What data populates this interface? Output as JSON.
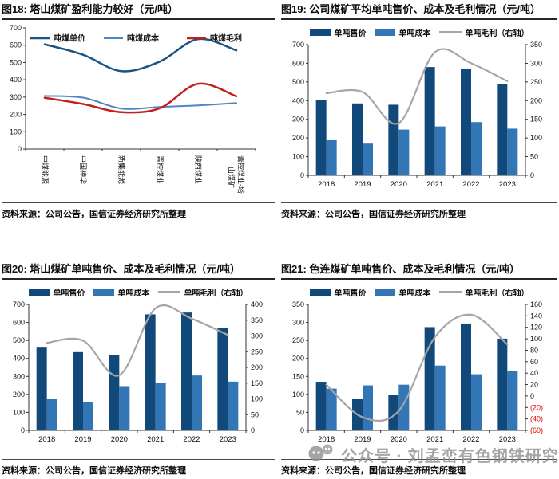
{
  "page": {
    "background": "#ffffff"
  },
  "source_label": "资料来源：公司公告，国信证券经济研究所整理",
  "watermark": {
    "text": "公众号 · 刘孟峦有色钢铁研究",
    "icon": "wechat-official-account-icon",
    "color": "#8d8d8d"
  },
  "colors": {
    "price_dark_blue": "#12497B",
    "cost_light_blue": "#3376B5",
    "margin_gray": "#A6A6A6",
    "margin_red": "#C42020",
    "negative_label_red": "#E60000",
    "axis": "#333333",
    "title_rule": "#23262e"
  },
  "chart_data": [
    {
      "id": "fig18",
      "type": "line",
      "title": "图18: 塔山煤矿盈利能力较好（元/吨）",
      "source": "资料来源：公司公告，国信证券经济研究所整理",
      "categories": [
        "中煤能源",
        "中国神华",
        "新集能源",
        "晋控煤业",
        "陕西煤业",
        "晋控煤业-塔山煤矿"
      ],
      "series": [
        {
          "name": "吨煤单价",
          "color": "#1A5480",
          "width": 2.5,
          "values": [
            605,
            545,
            450,
            505,
            635,
            570
          ]
        },
        {
          "name": "吨煤成本",
          "color": "#4C86C3",
          "width": 2,
          "values": [
            307,
            297,
            234,
            243,
            252,
            266
          ]
        },
        {
          "name": "吨煤毛利",
          "color": "#C42020",
          "width": 2.5,
          "values": [
            296,
            260,
            213,
            236,
            377,
            305
          ]
        }
      ],
      "y": {
        "min": 0,
        "max": 700,
        "step": 100
      },
      "xlabel_rotation": 90,
      "grid": false,
      "legend_position": "inside-top"
    },
    {
      "id": "fig19",
      "type": "bar-line",
      "title": "图19: 公司煤矿平均单吨售价、成本及毛利情况（元/吨）",
      "source": "资料来源：公司公告，国信证券经济研究所整理",
      "categories": [
        "2018",
        "2019",
        "2020",
        "2021",
        "2022",
        "2023"
      ],
      "bars": [
        {
          "name": "单吨售价",
          "color": "#12497B",
          "values": [
            405,
            385,
            378,
            580,
            572,
            490
          ]
        },
        {
          "name": "单吨成本",
          "color": "#3376B5",
          "values": [
            188,
            170,
            245,
            262,
            285,
            250
          ]
        }
      ],
      "line": {
        "name": "单吨毛利（右轴）",
        "color": "#A6A6A6",
        "axis": "right",
        "values": [
          220,
          223,
          140,
          330,
          300,
          252
        ]
      },
      "y": {
        "min": 0,
        "max": 700,
        "step": 100
      },
      "y2": {
        "min": 0,
        "max": 350,
        "step": 50
      },
      "grid": false,
      "legend_position": "top"
    },
    {
      "id": "fig20",
      "type": "bar-line",
      "title": "图20: 塔山煤矿单吨售价、成本及毛利情况（元/吨）",
      "source": "资料来源：公司公告，国信证券经济研究所整理",
      "categories": [
        "2018",
        "2019",
        "2020",
        "2021",
        "2022",
        "2023"
      ],
      "bars": [
        {
          "name": "单吨售价",
          "color": "#12497B",
          "values": [
            460,
            435,
            420,
            645,
            655,
            570
          ]
        },
        {
          "name": "单吨成本",
          "color": "#3376B5",
          "values": [
            175,
            157,
            246,
            264,
            305,
            271
          ]
        }
      ],
      "line": {
        "name": "单吨毛利（右轴）",
        "color": "#A6A6A6",
        "axis": "right",
        "values": [
          278,
          285,
          175,
          388,
          355,
          303
        ]
      },
      "y": {
        "min": 0,
        "max": 700,
        "step": 100
      },
      "y2": {
        "min": 0,
        "max": 400,
        "step": 50
      },
      "grid": false,
      "legend_position": "top"
    },
    {
      "id": "fig21",
      "type": "bar-line",
      "title": "图21: 色连煤矿单吨售价、成本及毛利情况（元/吨）",
      "source": "资料来源：公司公告，国信证券经济研究所整理",
      "categories": [
        "2018",
        "2019",
        "2020",
        "2021",
        "2022",
        "2023"
      ],
      "bars": [
        {
          "name": "单吨售价",
          "color": "#12497B",
          "values": [
            135,
            88,
            99,
            287,
            297,
            255
          ]
        },
        {
          "name": "单吨成本",
          "color": "#3376B5",
          "values": [
            116,
            125,
            127,
            180,
            156,
            166
          ]
        }
      ],
      "line": {
        "name": "单吨毛利（右轴）",
        "color": "#A6A6A6",
        "axis": "right",
        "values": [
          20,
          -37,
          -26,
          103,
          142,
          90
        ]
      },
      "y": {
        "min": 0,
        "max": 350,
        "step": 50
      },
      "y2": {
        "min": -60,
        "max": 160,
        "step": 20,
        "negative_red_parens": true
      },
      "grid": false,
      "legend_position": "top"
    }
  ]
}
